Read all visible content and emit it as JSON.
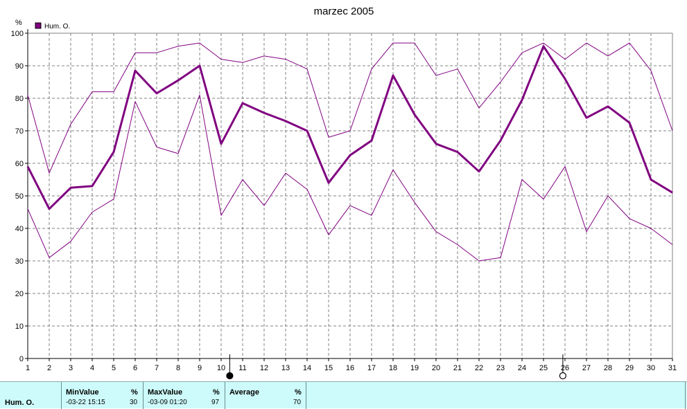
{
  "chart_data": {
    "type": "line",
    "title": "marzec 2005",
    "ylabel": "%",
    "legend": {
      "label": "Hum. O.",
      "placement": "top-left"
    },
    "ylim": [
      0,
      100
    ],
    "yticks": [
      0,
      10,
      20,
      30,
      40,
      50,
      60,
      70,
      80,
      90,
      100
    ],
    "x": [
      1,
      2,
      3,
      4,
      5,
      6,
      7,
      8,
      9,
      10,
      11,
      12,
      13,
      14,
      15,
      16,
      17,
      18,
      19,
      20,
      21,
      22,
      23,
      24,
      25,
      26,
      27,
      28,
      29,
      30,
      31
    ],
    "grid": true,
    "color": "#800080",
    "series": [
      {
        "role": "average",
        "values": [
          59,
          46,
          52.5,
          53,
          63.5,
          88.5,
          81.5,
          85.5,
          90,
          66,
          78.5,
          75.5,
          73,
          70,
          54,
          62.5,
          67,
          87,
          75,
          66,
          63.5,
          57.5,
          67,
          79.5,
          96,
          86,
          74,
          77.5,
          72.5,
          55,
          51
        ]
      },
      {
        "role": "maximum",
        "values": [
          81,
          57,
          72,
          82,
          82,
          94,
          94,
          96,
          97,
          92,
          91,
          93,
          92,
          89,
          68,
          70,
          89,
          97,
          97,
          87,
          89,
          77,
          85,
          94,
          97,
          92,
          97,
          93,
          97,
          88.5,
          70
        ]
      },
      {
        "role": "minimum",
        "values": [
          46,
          31,
          36,
          45,
          49,
          79,
          65,
          63,
          81,
          44,
          55,
          47,
          57,
          52,
          38,
          47,
          44,
          58,
          48,
          39,
          35,
          30,
          31,
          55,
          49,
          59,
          39,
          50,
          43,
          40,
          35
        ]
      }
    ],
    "markers": [
      {
        "x": 10.4,
        "kind": "filled"
      },
      {
        "x": 25.9,
        "kind": "open"
      }
    ]
  },
  "footer": {
    "row_label": "Hum. O.",
    "min": {
      "header": "MinValue",
      "unit": "%",
      "time": "-03-22  15:15",
      "value": "30"
    },
    "max": {
      "header": "MaxValue",
      "unit": "%",
      "time": "-03-09  01:20",
      "value": "97"
    },
    "avg": {
      "header": "Average",
      "unit": "%",
      "value": "70"
    }
  }
}
